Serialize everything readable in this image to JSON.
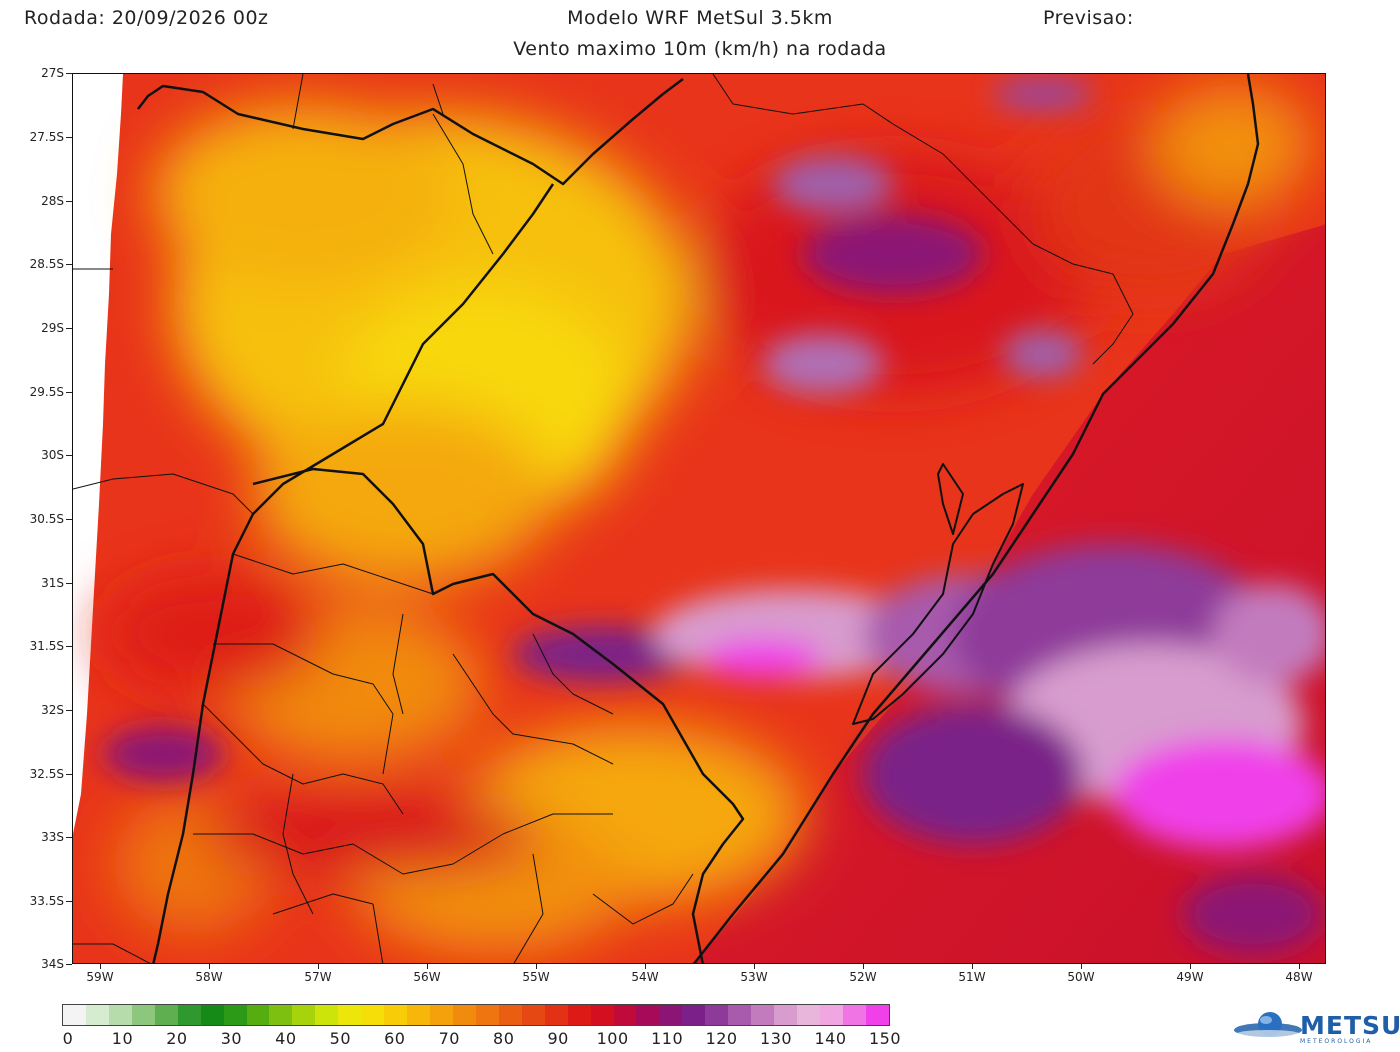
{
  "header": {
    "run_label": "Rodada: 20/09/2026 00z",
    "model_label": "Modelo WRF MetSul 3.5km",
    "forecast_label": "Previsao:",
    "subtitle": "Vento maximo 10m (km/h) na rodada"
  },
  "map": {
    "lat_labels": [
      "27S",
      "27.5S",
      "28S",
      "28.5S",
      "29S",
      "29.5S",
      "30S",
      "30.5S",
      "31S",
      "31.5S",
      "32S",
      "32.5S",
      "33S",
      "33.5S",
      "34S"
    ],
    "lon_labels": [
      "59W",
      "58W",
      "57W",
      "56W",
      "55W",
      "54W",
      "53W",
      "52W",
      "51W",
      "50W",
      "49W",
      "48W"
    ]
  },
  "colorbar": {
    "labels": [
      "0",
      "10",
      "20",
      "30",
      "40",
      "50",
      "60",
      "70",
      "80",
      "90",
      "100",
      "110",
      "120",
      "130",
      "140",
      "150"
    ],
    "colors": [
      "#f4f4f4",
      "#d6ecd0",
      "#b5dcaa",
      "#8cc77d",
      "#5fae50",
      "#2f9930",
      "#168a16",
      "#2c9a16",
      "#55ad10",
      "#7dc010",
      "#a6d30c",
      "#cde40a",
      "#ece60a",
      "#f6df08",
      "#f9cc08",
      "#f7b70a",
      "#f4a10c",
      "#f18b0e",
      "#ee7510",
      "#ea5e12",
      "#e64814",
      "#e23114",
      "#de1a16",
      "#d40f20",
      "#c00a3a",
      "#a60a58",
      "#8c1474",
      "#7a2088",
      "#8e3a9a",
      "#a85aac",
      "#c27cbe",
      "#d89cce",
      "#e8b6da",
      "#f0a6e0",
      "#f074e4",
      "#f040ea"
    ]
  },
  "logo": {
    "name": "METSUL",
    "sub": "METEOROLOGIA"
  }
}
